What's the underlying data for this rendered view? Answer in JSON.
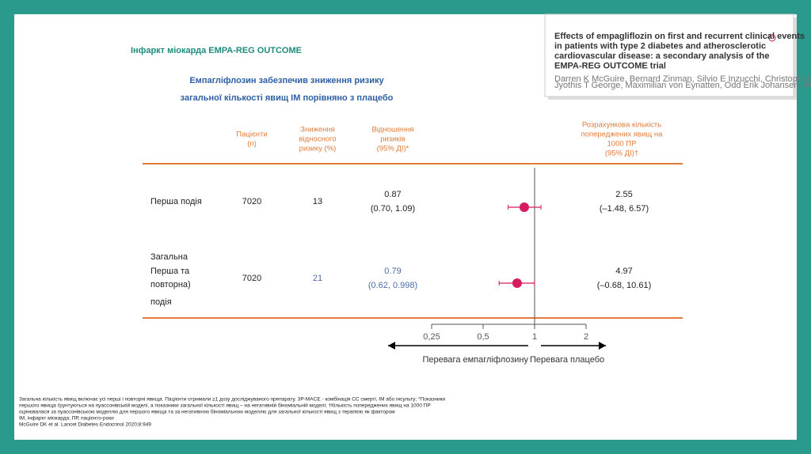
{
  "title": "Інфаркт міокарда EMPA-REG OUTCOME",
  "subtitle": [
    "Емпагліфлозин забезпечив зниження ризику",
    "загальної кількості явищ ІМ порівняно з плацебо"
  ],
  "inset": {
    "title": [
      "Effects of empagliflozin on first and recurrent clinical events",
      "in patients with type 2 diabetes and atherosclerotic",
      "cardiovascular disease: a secondary analysis of the",
      "EMPA-REG OUTCOME trial"
    ],
    "authors": [
      "Darren K McGuire, Bernard Zinman, Silvio E Inzucchi, Christoph Wanner, David Fitchett, Stefan D Anker, Stuart Pocock, Stefan Kaspers,",
      "Jyothis T George, Maximilian von Eynatten, Odd Erik Johansen, Waheed Jamal, Michaela Mattheus, Ulrich Kruse, Stefan Hantel*, Søren S Lund*"
    ]
  },
  "table": {
    "headers": {
      "patients": [
        "Пацієнти",
        "(n)"
      ],
      "rrr": [
        "Зниження",
        "відносного",
        "ризику (%)"
      ],
      "hr": [
        "Відношення",
        "ризиків",
        "(95% ДІ)*"
      ],
      "nnt": [
        "Розрахункова кількість",
        "попереджених явищ на",
        "1000 ПР",
        "(95% ДІ)†"
      ]
    },
    "rows": [
      {
        "label": [
          "Перша подія"
        ],
        "patients": "7020",
        "rrr": "13",
        "nnt": "2.55",
        "nnt_ci": "(–1.48, 6.57)"
      },
      {
        "label": [
          "Загальна",
          "Перша та",
          "повторна)",
          "подія"
        ],
        "patients": "7020",
        "rrr": "21",
        "nnt": "4.97",
        "nnt_ci": "(–0.68, 10.61)"
      }
    ]
  },
  "chart_data": {
    "type": "forest",
    "values": [
      0.87,
      0.79
    ],
    "ci_low": [
      0.7,
      0.62
    ],
    "ci_high": [
      1.09,
      0.998
    ],
    "ci_labels": [
      "(0.70, 1.09)",
      "(0.62, 0.998)"
    ],
    "color": "#d81b60",
    "log_x": true,
    "xlim": [
      0.25,
      2
    ],
    "xticks": [
      {
        "value": 0.25,
        "label": "0,25"
      },
      {
        "value": 0.5,
        "label": "0,5"
      },
      1,
      2
    ],
    "reference": 1,
    "x_annotations": [
      "Перевага емпагліфлозину",
      "Перевага плацебо"
    ]
  },
  "footnotes": [
    "Загальна кількість явищ включає усі перші і повторні явища. Пацієнти отримали ≥1 дозу досліджуваного препарату. 3P-MACE - комбінація СС смерті, ІМ або інсульту; *Показники",
    "першого явища ґрунтуються на пуассонівській моделі, а показники загальної кількості явищ – на негативній біноміальній моделі; †Кількість попереджених явищ на 1000 ПР",
    "оцінювалася за пуассонівською моделлю для першого явища та за негативною біноміальною моделлю для загальної кількості явищ з терапією як фактором",
    "ІМ, інфаркт міокарда; ПР, пацієнто-роки",
    "McGuire DK et al. Lancet Diabetes Endocrinol 2020;8:949"
  ]
}
